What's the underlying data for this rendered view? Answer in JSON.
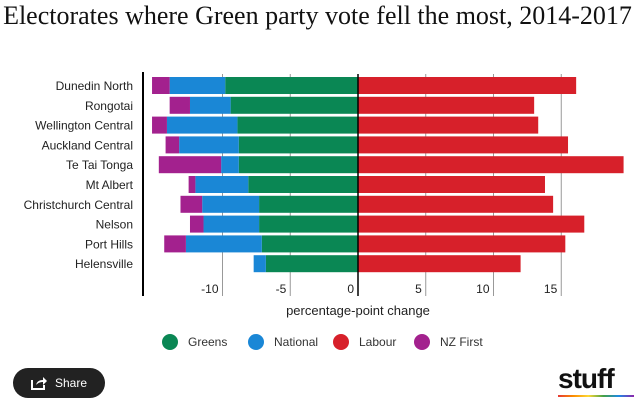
{
  "chart_data": {
    "type": "bar",
    "stacked": true,
    "orientation": "horizontal",
    "title": "Electorates where Green party vote fell the most, 2014-2017",
    "xlabel": "percentage-point change",
    "ylabel": "",
    "xlim": [
      -16,
      20
    ],
    "xticks": [
      -10,
      -5,
      0,
      5,
      10,
      15
    ],
    "tick_labels": [
      "-10",
      "-5",
      "0",
      "5",
      "10",
      "15"
    ],
    "grid": true,
    "legend_position": "bottom",
    "categories": [
      "Dunedin North",
      "Rongotai",
      "Wellington Central",
      "Auckland Central",
      "Te Tai Tonga",
      "Mt Albert",
      "Christchurch Central",
      "Nelson",
      "Port Hills",
      "Helensville"
    ],
    "series": [
      {
        "name": "Greens",
        "color": "#0a8754",
        "values": [
          -9.8,
          -9.4,
          -8.9,
          -8.8,
          -8.8,
          -8.1,
          -7.3,
          -7.3,
          -7.1,
          -6.8
        ]
      },
      {
        "name": "National",
        "color": "#1a87d6",
        "values": [
          -4.1,
          -3.0,
          -5.2,
          -4.4,
          -1.3,
          -3.9,
          -4.2,
          -4.1,
          -5.6,
          -0.9
        ]
      },
      {
        "name": "Labour",
        "color": "#d7202a",
        "values": [
          16.1,
          13.0,
          13.3,
          15.5,
          19.6,
          13.8,
          14.4,
          16.7,
          15.3,
          12.0
        ]
      },
      {
        "name": "NZ First",
        "color": "#a3218e",
        "values": [
          -1.3,
          -1.5,
          -1.1,
          -1.0,
          -4.6,
          -0.5,
          -1.6,
          -1.0,
          -1.6,
          0
        ]
      }
    ]
  },
  "share_label": "Share",
  "logo_text": "stuff"
}
